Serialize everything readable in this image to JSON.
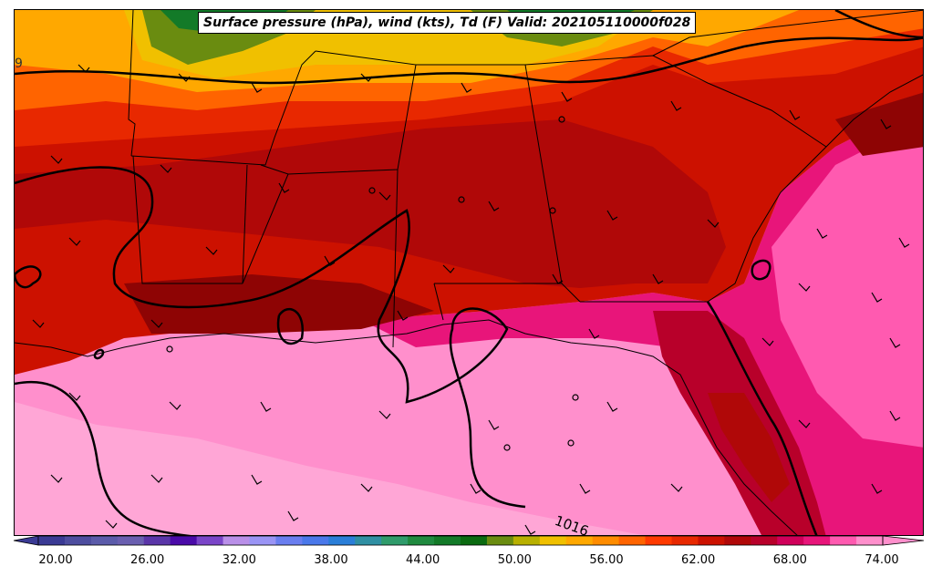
{
  "map": {
    "title": "Surface pressure (hPa), wind (kts), Td (F) Valid: 202105110000f028",
    "isobar_label": "1016",
    "edge_label": "9"
  },
  "colorbar": {
    "ticks": [
      "20.00",
      "26.00",
      "32.00",
      "38.00",
      "44.00",
      "50.00",
      "56.00",
      "62.00",
      "68.00",
      "74.00"
    ],
    "colors": [
      "#3a3a94",
      "#4d4d9f",
      "#5b5baa",
      "#6a5fb0",
      "#5a35a8",
      "#4a0aa8",
      "#7a45c8",
      "#b98fe8",
      "#9a94f5",
      "#6a7ef0",
      "#4a78ea",
      "#2a7ed8",
      "#2f8fa3",
      "#2f9b6b",
      "#1f8a3f",
      "#137a28",
      "#0a6a10",
      "#6a8c10",
      "#b8b000",
      "#f0c000",
      "#ffa800",
      "#ff8c00",
      "#ff6400",
      "#ff3a00",
      "#e82800",
      "#cc1100",
      "#b00808",
      "#b8002a",
      "#d0005a",
      "#e8157a",
      "#ff5ab0",
      "#ff8fcc"
    ]
  }
}
